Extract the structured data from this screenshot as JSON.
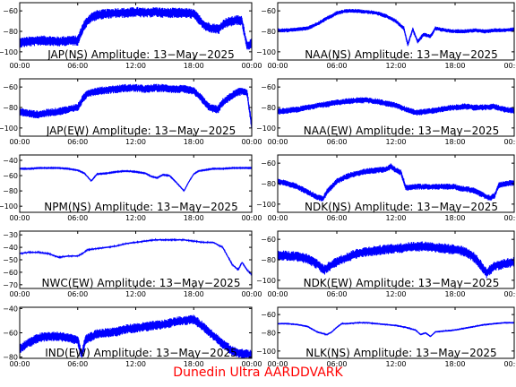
{
  "figure": {
    "credit": "Dunedin Ultra AARDDVARK",
    "colors": {
      "trace": "#0000ff",
      "axes": "#000000",
      "credit": "#ff0000"
    }
  },
  "chart_data": [
    {
      "type": "line",
      "title": "JAP(NS) Amplitude: 13−May−2025",
      "xticks": [
        "00:00",
        "06:00",
        "12:00",
        "18:00",
        "00:00"
      ],
      "xlim": [
        0,
        24
      ],
      "yticks": [
        "−60",
        "−80",
        "−100"
      ],
      "ylim": [
        -108,
        -52
      ],
      "x": [
        0,
        1,
        2,
        3,
        4,
        5,
        6,
        6.6,
        7.3,
        8,
        9,
        10,
        11,
        12,
        13,
        14,
        15,
        16,
        17,
        18,
        18.6,
        19.2,
        20,
        20.6,
        21.2,
        22,
        22.6,
        23,
        23.5,
        24
      ],
      "y": [
        -91,
        -90,
        -89,
        -89,
        -90,
        -89,
        -89,
        -75,
        -67,
        -64,
        -63,
        -62,
        -62,
        -61,
        -62,
        -61,
        -62,
        -62,
        -62,
        -63,
        -69,
        -75,
        -77,
        -78,
        -72,
        -70,
        -69,
        -70,
        -94,
        -92
      ],
      "band": 5
    },
    {
      "type": "line",
      "title": "NAA(NS) Amplitude: 13−May−2025",
      "xticks": [
        "00:00",
        "06:00",
        "12:00",
        "18:00",
        "00:00"
      ],
      "xlim": [
        0,
        24
      ],
      "yticks": [
        "−60",
        "−80",
        "−100"
      ],
      "ylim": [
        -108,
        -52
      ],
      "x": [
        0,
        1,
        2,
        3,
        4,
        4.5,
        5,
        5.5,
        6,
        7,
        8,
        9,
        10,
        11,
        12,
        12.8,
        13.2,
        13.7,
        14.2,
        14.8,
        15.5,
        16,
        17,
        18,
        19,
        20,
        21,
        22,
        23,
        24
      ],
      "y": [
        -79,
        -79,
        -78,
        -77,
        -73,
        -70,
        -67,
        -65,
        -62,
        -60,
        -60,
        -61,
        -62,
        -65,
        -70,
        -77,
        -93,
        -78,
        -90,
        -83,
        -85,
        -77,
        -79,
        -80,
        -80,
        -79,
        -80,
        -79,
        -79,
        -78
      ],
      "band": 2
    },
    {
      "type": "line",
      "title": "JAP(EW) Amplitude: 13−May−2025",
      "xticks": [
        "00:00",
        "06:00",
        "12:00",
        "18:00",
        "00:00"
      ],
      "xlim": [
        0,
        24
      ],
      "yticks": [
        "−60",
        "−80",
        "−100"
      ],
      "ylim": [
        -108,
        -52
      ],
      "x": [
        0,
        1,
        2,
        3,
        4,
        5,
        6,
        6.5,
        7,
        8,
        9,
        10,
        11,
        12,
        13,
        14,
        15,
        16,
        17,
        18,
        18.8,
        19.5,
        20,
        20.5,
        21,
        22,
        22.6,
        23,
        23.5,
        24
      ],
      "y": [
        -84,
        -86,
        -87,
        -85,
        -84,
        -82,
        -80,
        -72,
        -66,
        -64,
        -63,
        -62,
        -61,
        -61,
        -62,
        -61,
        -61,
        -62,
        -62,
        -64,
        -71,
        -79,
        -81,
        -82,
        -75,
        -68,
        -65,
        -64,
        -65,
        -98
      ],
      "band": 4
    },
    {
      "type": "line",
      "title": "NAA(EW) Amplitude: 13−May−2025",
      "xticks": [
        "00:00",
        "06:00",
        "12:00",
        "18:00",
        "00:00"
      ],
      "xlim": [
        0,
        24
      ],
      "yticks": [
        "−60",
        "−80",
        "−100"
      ],
      "ylim": [
        -108,
        -52
      ],
      "x": [
        0,
        1,
        2,
        3,
        4,
        5,
        6,
        7,
        8,
        9,
        10,
        11,
        12,
        13,
        14,
        15,
        16,
        17,
        18,
        19,
        20,
        21,
        22,
        23,
        24
      ],
      "y": [
        -84,
        -83,
        -82,
        -80,
        -78,
        -77,
        -75,
        -74,
        -73,
        -73,
        -74,
        -76,
        -78,
        -82,
        -85,
        -84,
        -83,
        -81,
        -80,
        -79,
        -80,
        -80,
        -79,
        -82,
        -83
      ],
      "band": 3
    },
    {
      "type": "line",
      "title": "NPM(NS) Amplitude: 13−May−2025",
      "xticks": [
        "00:00",
        "06:00",
        "12:00",
        "18:00",
        "00:00"
      ],
      "xlim": [
        0,
        24
      ],
      "yticks": [
        "−40",
        "−60",
        "−80",
        "−100"
      ],
      "ylim": [
        -108,
        -33
      ],
      "x": [
        0,
        1,
        2,
        3,
        4,
        5,
        6,
        6.7,
        7.4,
        8,
        9,
        10,
        11,
        12,
        13,
        13.6,
        14.2,
        14.8,
        15.5,
        16.2,
        17,
        17.5,
        18,
        18.5,
        19,
        20,
        21,
        22,
        23,
        24
      ],
      "y": [
        -51,
        -51,
        -50,
        -50,
        -50,
        -51,
        -53,
        -57,
        -67,
        -58,
        -57,
        -55,
        -54,
        -55,
        -57,
        -61,
        -63,
        -59,
        -60,
        -69,
        -80,
        -68,
        -58,
        -54,
        -53,
        -51,
        -51,
        -50,
        -50,
        -50
      ],
      "band": 0.6
    },
    {
      "type": "line",
      "title": "NDK(NS) Amplitude: 13−May−2025",
      "xticks": [
        "00:00",
        "06:00",
        "12:00",
        "18:00",
        "00:00"
      ],
      "xlim": [
        0,
        24
      ],
      "yticks": [
        "−60",
        "−80",
        "−100"
      ],
      "ylim": [
        -108,
        -52
      ],
      "x": [
        0,
        1,
        2,
        3,
        4,
        4.6,
        5,
        6,
        7,
        8,
        9,
        10,
        11,
        11.5,
        12,
        12.5,
        13,
        14,
        15,
        16,
        17,
        18,
        18.5,
        19,
        20,
        21,
        21.5,
        22,
        22.4,
        23,
        24
      ],
      "y": [
        -78,
        -80,
        -83,
        -88,
        -93,
        -95,
        -88,
        -78,
        -73,
        -70,
        -68,
        -67,
        -66,
        -63,
        -67,
        -69,
        -84,
        -83,
        -83,
        -83,
        -83,
        -83,
        -85,
        -85,
        -87,
        -92,
        -94,
        -92,
        -82,
        -80,
        -79
      ],
      "band": 3
    },
    {
      "type": "line",
      "title": "NWC(EW) Amplitude: 13−May−2025",
      "xticks": [
        "00:00",
        "06:00",
        "12:00",
        "18:00",
        "00:00"
      ],
      "xlim": [
        0,
        24
      ],
      "yticks": [
        "−30",
        "−40",
        "−50",
        "−60",
        "−70"
      ],
      "ylim": [
        -73,
        -27
      ],
      "x": [
        0,
        1,
        2,
        3,
        4,
        5,
        6,
        6.5,
        7,
        8,
        9,
        10,
        11,
        12,
        13,
        14,
        15,
        16,
        17,
        18,
        19,
        20,
        21,
        21.5,
        22,
        22.6,
        23,
        23.5,
        24
      ],
      "y": [
        -45,
        -44,
        -44,
        -45,
        -48,
        -47,
        -47,
        -45,
        -42,
        -41,
        -40,
        -39,
        -37,
        -36,
        -35,
        -34,
        -34,
        -34,
        -34,
        -35,
        -36,
        -36,
        -40,
        -47,
        -54,
        -58,
        -52,
        -58,
        -62
      ],
      "band": 0.6
    },
    {
      "type": "line",
      "title": "NDK(EW) Amplitude: 13−May−2025",
      "xticks": [
        "00:00",
        "06:00",
        "12:00",
        "18:00",
        "00:00"
      ],
      "xlim": [
        0,
        24
      ],
      "yticks": [
        "−60",
        "−80",
        "−100"
      ],
      "ylim": [
        -108,
        -52
      ],
      "x": [
        0,
        1,
        2,
        3,
        4,
        4.7,
        5.3,
        6,
        7,
        8,
        9,
        10,
        11,
        12,
        13,
        14,
        15,
        16,
        17,
        18,
        19,
        20,
        20.6,
        21.2,
        22,
        23,
        24
      ],
      "y": [
        -76,
        -76,
        -77,
        -79,
        -84,
        -90,
        -86,
        -82,
        -78,
        -74,
        -72,
        -71,
        -70,
        -69,
        -68,
        -67,
        -67,
        -68,
        -69,
        -70,
        -72,
        -78,
        -85,
        -93,
        -86,
        -84,
        -82
      ],
      "band": 5
    },
    {
      "type": "line",
      "title": "IND(EW) Amplitude: 13−May−2025",
      "xticks": [
        "00:00",
        "06:00",
        "12:00",
        "18:00",
        "00:00"
      ],
      "xlim": [
        0,
        24
      ],
      "yticks": [
        "−40",
        "−60",
        "−80"
      ],
      "ylim": [
        -81,
        -39
      ],
      "x": [
        0,
        1,
        2,
        3,
        4,
        5,
        6,
        6.4,
        6.8,
        7.2,
        8,
        9,
        10,
        11,
        12,
        13,
        14,
        15,
        16,
        17,
        18,
        19,
        20,
        21,
        22,
        23,
        24
      ],
      "y": [
        -73,
        -68,
        -64,
        -63,
        -63,
        -64,
        -66,
        -78,
        -66,
        -64,
        -61,
        -60,
        -59,
        -57,
        -56,
        -55,
        -54,
        -53,
        -51,
        -50,
        -49,
        -55,
        -62,
        -69,
        -75,
        -77,
        -78
      ],
      "band": 4
    },
    {
      "type": "line",
      "title": "NLK(NS) Amplitude: 13−May−2025",
      "xticks": [
        "00:00",
        "06:00",
        "12:00",
        "18:00",
        "00:00"
      ],
      "xlim": [
        0,
        24
      ],
      "yticks": [
        "−60",
        "−80",
        "−100"
      ],
      "ylim": [
        -108,
        -52
      ],
      "x": [
        0,
        1,
        2,
        3,
        4,
        5,
        5.5,
        6,
        6.5,
        7,
        8,
        9,
        10,
        11,
        12,
        13,
        14,
        14.5,
        15,
        15.5,
        16,
        17,
        18,
        19,
        20,
        20.5,
        21,
        22,
        23,
        24
      ],
      "y": [
        -70,
        -70,
        -71,
        -73,
        -79,
        -82,
        -79,
        -74,
        -70,
        -70,
        -69,
        -69,
        -70,
        -71,
        -72,
        -74,
        -77,
        -82,
        -80,
        -84,
        -79,
        -78,
        -77,
        -75,
        -73,
        -72,
        -71,
        -70,
        -69,
        -69
      ],
      "band": 1
    }
  ]
}
